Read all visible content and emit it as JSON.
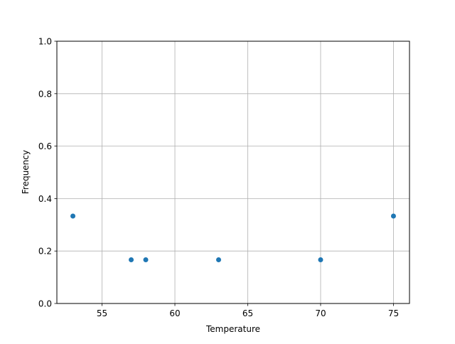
{
  "chart_data": {
    "type": "scatter",
    "title": "",
    "xlabel": "Temperature",
    "ylabel": "Frequency",
    "x": [
      53,
      57,
      58,
      63,
      70,
      75
    ],
    "y": [
      0.3333,
      0.1667,
      0.1667,
      0.1667,
      0.1667,
      0.3333
    ],
    "xlim": [
      51.9,
      76.1
    ],
    "ylim": [
      0.0,
      1.0
    ],
    "xticks": [
      55,
      60,
      65,
      70,
      75
    ],
    "xtick_labels": [
      "55",
      "60",
      "65",
      "70",
      "75"
    ],
    "yticks": [
      0.0,
      0.2,
      0.4,
      0.6,
      0.8,
      1.0
    ],
    "ytick_labels": [
      "0.0",
      "0.2",
      "0.4",
      "0.6",
      "0.8",
      "1.0"
    ],
    "grid": true,
    "marker_color": "#1f77b4"
  }
}
